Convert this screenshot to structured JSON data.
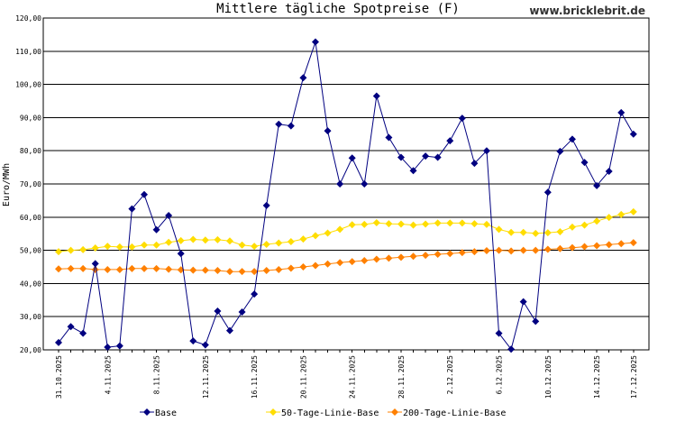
{
  "chart_data": {
    "type": "line",
    "title": "Mittlere tägliche Spotpreise (F)",
    "watermark": "www.bricklebrit.de",
    "ylabel": "Euro/MWh",
    "xlabel": "",
    "ylim": [
      20,
      120
    ],
    "yticks": [
      "20,00",
      "30,00",
      "40,00",
      "50,00",
      "60,00",
      "70,00",
      "80,00",
      "90,00",
      "100,00",
      "110,00",
      "120,00"
    ],
    "ytick_values": [
      20,
      30,
      40,
      50,
      60,
      70,
      80,
      90,
      100,
      110,
      120
    ],
    "xtick_labels": [
      "31.10.2025",
      "4.11.2025",
      "8.11.2025",
      "12.11.2025",
      "16.11.2025",
      "20.11.2025",
      "24.11.2025",
      "28.11.2025",
      "2.12.2025",
      "6.12.2025",
      "10.12.2025",
      "14.12.2025",
      "17.12.2025"
    ],
    "xtick_index": [
      0,
      4,
      8,
      12,
      16,
      20,
      24,
      28,
      32,
      36,
      40,
      44,
      47
    ],
    "grid": "horizontal",
    "legend": "bottom",
    "x": [
      "31.10.2025",
      "1.11.2025",
      "2.11.2025",
      "3.11.2025",
      "4.11.2025",
      "5.11.2025",
      "6.11.2025",
      "7.11.2025",
      "8.11.2025",
      "9.11.2025",
      "10.11.2025",
      "11.11.2025",
      "12.11.2025",
      "13.11.2025",
      "14.11.2025",
      "15.11.2025",
      "16.11.2025",
      "17.11.2025",
      "18.11.2025",
      "19.11.2025",
      "20.11.2025",
      "21.11.2025",
      "22.11.2025",
      "23.11.2025",
      "24.11.2025",
      "25.11.2025",
      "26.11.2025",
      "27.11.2025",
      "28.11.2025",
      "29.11.2025",
      "30.11.2025",
      "1.12.2025",
      "2.12.2025",
      "3.12.2025",
      "4.12.2025",
      "5.12.2025",
      "6.12.2025",
      "7.12.2025",
      "8.12.2025",
      "9.12.2025",
      "10.12.2025",
      "11.12.2025",
      "12.12.2025",
      "13.12.2025",
      "14.12.2025",
      "15.12.2025",
      "16.12.2025",
      "17.12.2025"
    ],
    "series": [
      {
        "name": "Base",
        "color": "#000080",
        "values": [
          22.2,
          27.0,
          25.0,
          46.0,
          20.8,
          21.2,
          62.5,
          66.8,
          56.2,
          60.5,
          49.0,
          22.7,
          21.5,
          31.7,
          25.8,
          31.4,
          36.8,
          63.5,
          88.0,
          87.5,
          102.0,
          112.8,
          86.0,
          70.0,
          77.8,
          70.0,
          96.5,
          84.0,
          78.0,
          74.0,
          78.4,
          78.0,
          83.0,
          89.8,
          76.2,
          80.0,
          25.0,
          20.2,
          34.5,
          28.6,
          67.5,
          79.8,
          83.5,
          76.5,
          69.5,
          73.8,
          91.5,
          85.0
        ]
      },
      {
        "name": "50-Tage-Linie-Base",
        "color": "#ffdd00",
        "values": [
          49.6,
          50.0,
          50.2,
          50.7,
          51.2,
          51.0,
          51.0,
          51.6,
          51.6,
          52.4,
          52.9,
          53.3,
          53.1,
          53.2,
          52.8,
          51.6,
          51.2,
          51.8,
          52.2,
          52.6,
          53.4,
          54.4,
          55.2,
          56.3,
          57.7,
          57.8,
          58.3,
          58.0,
          57.9,
          57.6,
          57.9,
          58.2,
          58.2,
          58.2,
          58.0,
          57.8,
          56.3,
          55.4,
          55.4,
          55.1,
          55.3,
          55.6,
          57.0,
          57.6,
          58.8,
          59.9,
          60.8,
          61.6
        ]
      },
      {
        "name": "200-Tage-Linie-Base",
        "color": "#ff8000",
        "values": [
          44.4,
          44.5,
          44.5,
          44.2,
          44.2,
          44.2,
          44.5,
          44.5,
          44.5,
          44.3,
          44.1,
          44.0,
          44.0,
          43.9,
          43.6,
          43.6,
          43.6,
          43.9,
          44.2,
          44.6,
          45.0,
          45.4,
          45.9,
          46.3,
          46.6,
          46.9,
          47.3,
          47.6,
          47.9,
          48.2,
          48.5,
          48.8,
          49.0,
          49.3,
          49.6,
          49.9,
          50.0,
          49.8,
          50.0,
          50.0,
          50.3,
          50.5,
          50.8,
          51.1,
          51.4,
          51.7,
          52.0,
          52.3
        ]
      }
    ]
  }
}
